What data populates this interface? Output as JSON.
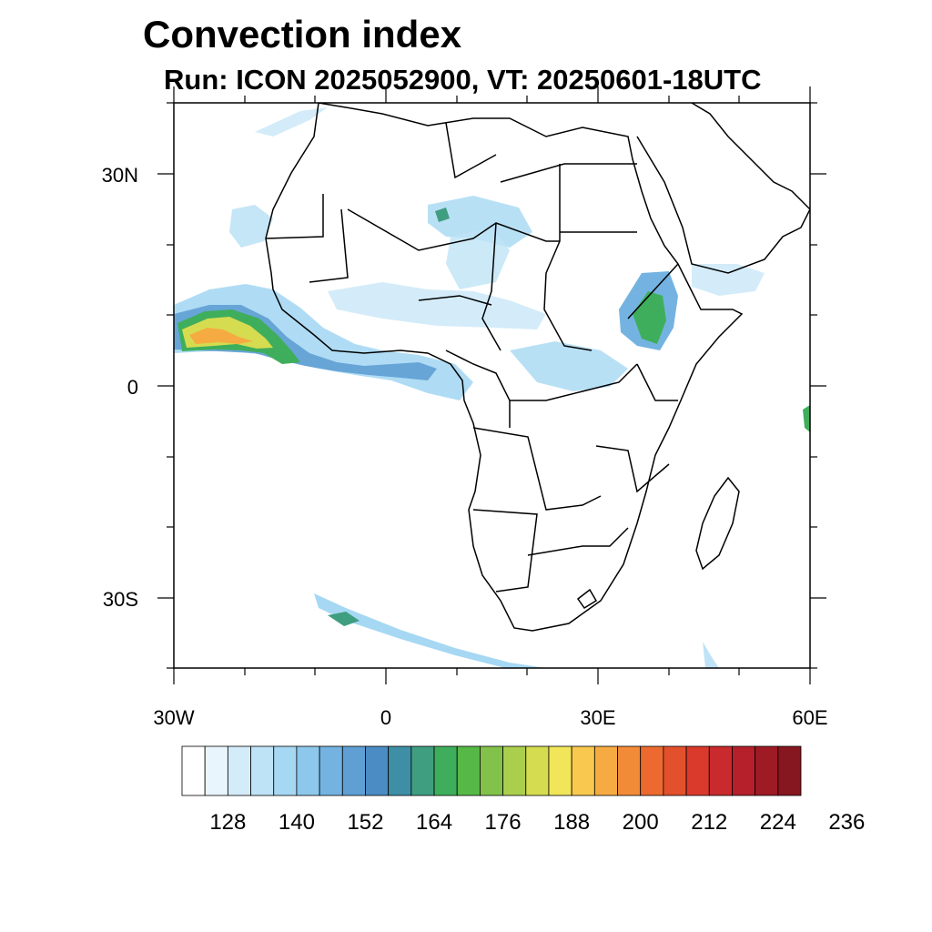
{
  "title": "Convection index",
  "subtitle": "Run: ICON 2025052900,  VT: 20250601-18UTC",
  "lat_labels": [
    "30N",
    "0",
    "30S"
  ],
  "lon_labels": [
    "30W",
    "0",
    "30E",
    "60E"
  ],
  "colorbar": {
    "colors": [
      "#ffffff",
      "#e9f5fc",
      "#d4ecf9",
      "#bfe3f6",
      "#a6d8f3",
      "#8dc8ec",
      "#74b3e1",
      "#5f9fd4",
      "#4b8cc4",
      "#3e8fa5",
      "#3f9e80",
      "#3fae5c",
      "#56b947",
      "#82c24a",
      "#aacf4c",
      "#d6dc50",
      "#f1e55a",
      "#f8c94e",
      "#f6ab42",
      "#f28b38",
      "#ec6a30",
      "#e2502c",
      "#d93a2c",
      "#c92a2d",
      "#b5202b",
      "#9e1a25",
      "#86161f"
    ],
    "labels": [
      "128",
      "140",
      "152",
      "164",
      "176",
      "188",
      "200",
      "212",
      "224",
      "236"
    ]
  }
}
